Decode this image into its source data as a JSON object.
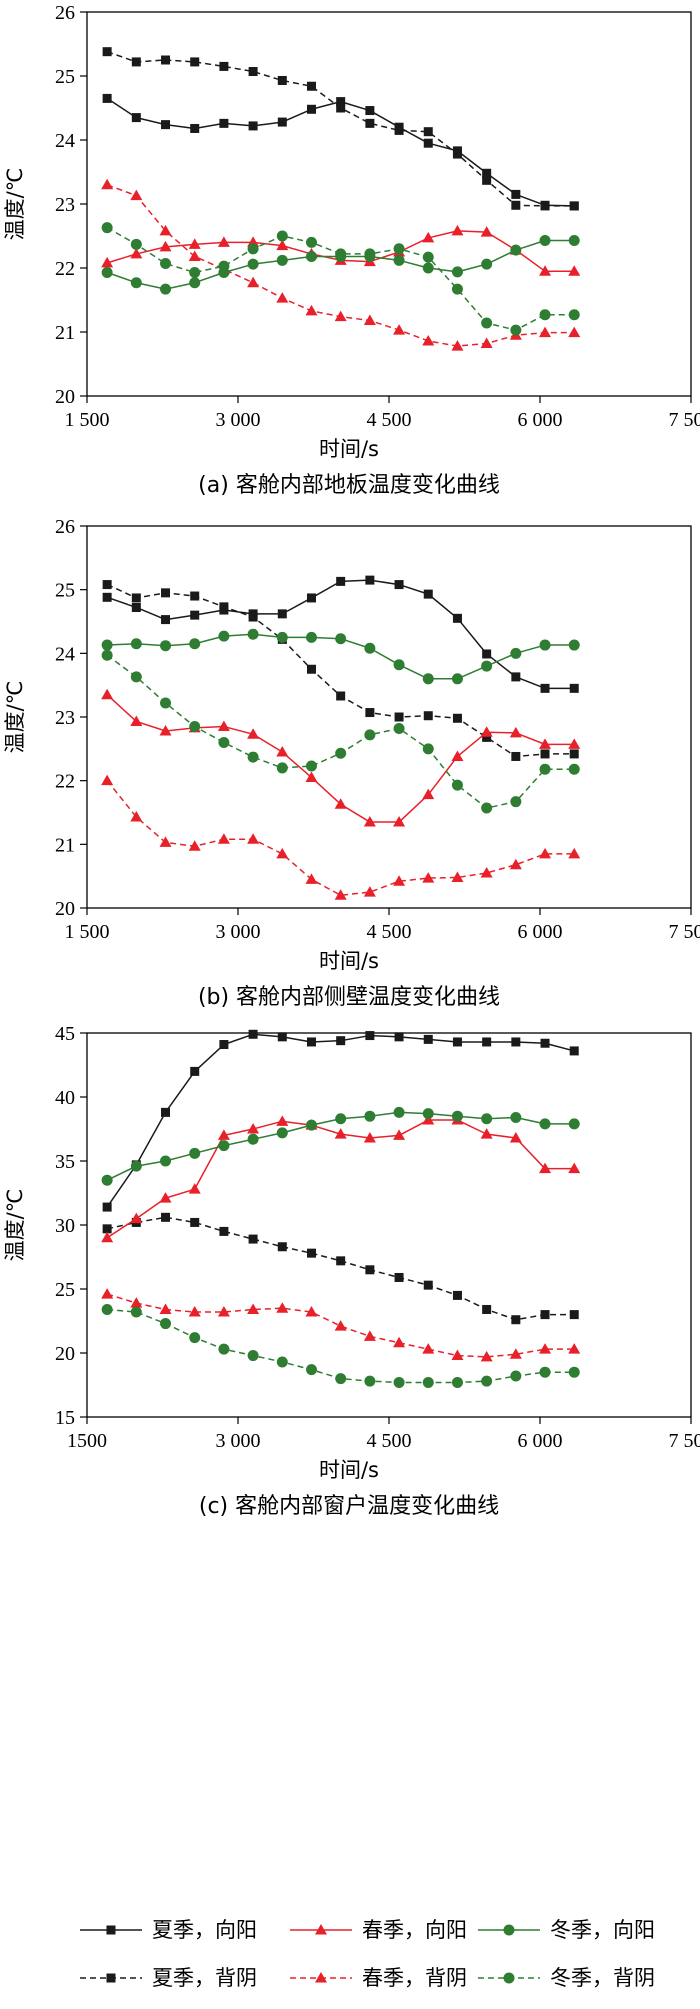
{
  "chart_data": [
    {
      "type": "line",
      "caption": "(a) 客舱内部地板温度变化曲线",
      "xlabel": "时间/s",
      "ylabel": "温度/℃",
      "xlim": [
        1500,
        7500
      ],
      "ylim": [
        20,
        26
      ],
      "xticks": [
        1500,
        3000,
        4500,
        6000,
        7500
      ],
      "xtick_labels": [
        "1 500",
        "3 000",
        "4 500",
        "6 000",
        "7 500"
      ],
      "yticks": [
        20,
        21,
        22,
        23,
        24,
        25,
        26
      ],
      "ytick_labels": [
        "20",
        "21",
        "22",
        "23",
        "24",
        "25",
        "26"
      ],
      "x": [
        1700,
        1990,
        2280,
        2570,
        2860,
        3150,
        3440,
        3730,
        4020,
        4310,
        4600,
        4890,
        5180,
        5470,
        5760,
        6050,
        6340
      ],
      "series": [
        {
          "name": "夏季,向阳",
          "values": [
            24.65,
            24.35,
            24.24,
            24.18,
            24.26,
            24.22,
            24.28,
            24.48,
            24.6,
            24.46,
            24.2,
            23.95,
            23.83,
            23.48,
            23.15,
            22.98,
            22.97
          ]
        },
        {
          "name": "夏季,背阴",
          "values": [
            25.38,
            25.22,
            25.25,
            25.22,
            25.15,
            25.07,
            24.93,
            24.84,
            24.5,
            24.26,
            24.15,
            24.13,
            23.78,
            23.37,
            22.98,
            22.97,
            22.97
          ]
        },
        {
          "name": "春季,向阳",
          "values": [
            22.08,
            22.22,
            22.33,
            22.37,
            22.4,
            22.4,
            22.35,
            22.22,
            22.12,
            22.1,
            22.25,
            22.47,
            22.58,
            22.56,
            22.28,
            21.95,
            21.95
          ]
        },
        {
          "name": "春季,背阴",
          "values": [
            23.3,
            23.13,
            22.58,
            22.18,
            21.98,
            21.77,
            21.53,
            21.33,
            21.24,
            21.18,
            21.03,
            20.86,
            20.78,
            20.82,
            20.95,
            20.99,
            20.99
          ]
        },
        {
          "name": "冬季,向阳",
          "values": [
            21.93,
            21.77,
            21.67,
            21.77,
            21.93,
            22.06,
            22.12,
            22.18,
            22.18,
            22.18,
            22.12,
            22.0,
            21.94,
            22.06,
            22.28,
            22.43,
            22.43
          ]
        },
        {
          "name": "冬季,背阴",
          "values": [
            22.63,
            22.37,
            22.07,
            21.93,
            22.03,
            22.3,
            22.5,
            22.4,
            22.22,
            22.22,
            22.3,
            22.17,
            21.67,
            21.14,
            21.03,
            21.27,
            21.27
          ]
        }
      ]
    },
    {
      "type": "line",
      "caption": "(b) 客舱内部侧壁温度变化曲线",
      "xlabel": "时间/s",
      "ylabel": "温度/℃",
      "xlim": [
        1500,
        7500
      ],
      "ylim": [
        20,
        26
      ],
      "xticks": [
        1500,
        3000,
        4500,
        6000,
        7500
      ],
      "xtick_labels": [
        "1 500",
        "3 000",
        "4 500",
        "6 000",
        "7 500"
      ],
      "yticks": [
        20,
        21,
        22,
        23,
        24,
        25,
        26
      ],
      "ytick_labels": [
        "20",
        "21",
        "22",
        "23",
        "24",
        "25",
        "26"
      ],
      "x": [
        1700,
        1990,
        2280,
        2570,
        2860,
        3150,
        3440,
        3730,
        4020,
        4310,
        4600,
        4890,
        5180,
        5470,
        5760,
        6050,
        6340
      ],
      "series": [
        {
          "name": "夏季,向阳",
          "values": [
            24.88,
            24.72,
            24.53,
            24.6,
            24.68,
            24.62,
            24.62,
            24.87,
            25.13,
            25.15,
            25.08,
            24.93,
            24.55,
            23.99,
            23.63,
            23.45,
            23.45
          ]
        },
        {
          "name": "夏季,背阴",
          "values": [
            25.08,
            24.87,
            24.95,
            24.9,
            24.73,
            24.57,
            24.22,
            23.75,
            23.33,
            23.07,
            23.0,
            23.02,
            22.98,
            22.68,
            22.38,
            22.42,
            22.42
          ]
        },
        {
          "name": "春季,向阳",
          "values": [
            23.35,
            22.93,
            22.78,
            22.83,
            22.85,
            22.73,
            22.45,
            22.05,
            21.63,
            21.35,
            21.35,
            21.78,
            22.38,
            22.76,
            22.75,
            22.57,
            22.57
          ]
        },
        {
          "name": "春季,背阴",
          "values": [
            22.0,
            21.43,
            21.03,
            20.97,
            21.08,
            21.08,
            20.85,
            20.45,
            20.2,
            20.25,
            20.42,
            20.47,
            20.48,
            20.55,
            20.68,
            20.85,
            20.85
          ]
        },
        {
          "name": "冬季,向阳",
          "values": [
            24.13,
            24.15,
            24.12,
            24.15,
            24.27,
            24.3,
            24.25,
            24.25,
            24.23,
            24.08,
            23.82,
            23.6,
            23.6,
            23.8,
            24.0,
            24.13,
            24.13
          ]
        },
        {
          "name": "冬季,背阴",
          "values": [
            23.97,
            23.63,
            23.22,
            22.85,
            22.6,
            22.37,
            22.2,
            22.23,
            22.43,
            22.72,
            22.82,
            22.5,
            21.93,
            21.57,
            21.67,
            22.18,
            22.18
          ]
        }
      ]
    },
    {
      "type": "line",
      "caption": "(c) 客舱内部窗户温度变化曲线",
      "xlabel": "时间/s",
      "ylabel": "温度/℃",
      "xlim": [
        1500,
        7500
      ],
      "ylim": [
        15,
        45
      ],
      "xticks": [
        1500,
        3000,
        4500,
        6000,
        7500
      ],
      "xtick_labels": [
        "1500",
        "3 000",
        "4 500",
        "6 000",
        "7 500"
      ],
      "yticks": [
        15,
        20,
        25,
        30,
        35,
        40,
        45
      ],
      "ytick_labels": [
        "15",
        "20",
        "25",
        "30",
        "35",
        "40",
        "45"
      ],
      "x": [
        1700,
        1990,
        2280,
        2570,
        2860,
        3150,
        3440,
        3730,
        4020,
        4310,
        4600,
        4890,
        5180,
        5470,
        5760,
        6050,
        6340
      ],
      "series": [
        {
          "name": "夏季,向阳",
          "values": [
            31.4,
            34.7,
            38.8,
            42.0,
            44.1,
            44.9,
            44.7,
            44.3,
            44.4,
            44.8,
            44.7,
            44.5,
            44.3,
            44.3,
            44.3,
            44.2,
            43.6
          ]
        },
        {
          "name": "夏季,背阴",
          "values": [
            29.7,
            30.2,
            30.6,
            30.2,
            29.5,
            28.9,
            28.3,
            27.8,
            27.2,
            26.5,
            25.9,
            25.3,
            24.5,
            23.4,
            22.6,
            23.0,
            23.0
          ]
        },
        {
          "name": "春季,向阳",
          "values": [
            29.0,
            30.5,
            32.1,
            32.8,
            37.0,
            37.5,
            38.1,
            37.8,
            37.1,
            36.8,
            37.0,
            38.2,
            38.2,
            37.1,
            36.8,
            34.4,
            34.4
          ]
        },
        {
          "name": "春季,背阴",
          "values": [
            24.6,
            23.9,
            23.4,
            23.2,
            23.2,
            23.4,
            23.5,
            23.2,
            22.1,
            21.3,
            20.8,
            20.3,
            19.8,
            19.7,
            19.9,
            20.3,
            20.3
          ]
        },
        {
          "name": "冬季,向阳",
          "values": [
            33.5,
            34.6,
            35.0,
            35.6,
            36.2,
            36.7,
            37.2,
            37.8,
            38.3,
            38.5,
            38.8,
            38.7,
            38.5,
            38.3,
            38.4,
            37.9,
            37.9
          ]
        },
        {
          "name": "冬季,背阴",
          "values": [
            23.4,
            23.2,
            22.3,
            21.2,
            20.3,
            19.8,
            19.3,
            18.7,
            18.0,
            17.8,
            17.7,
            17.7,
            17.7,
            17.8,
            18.2,
            18.5,
            18.5
          ]
        }
      ]
    }
  ],
  "legend": [
    {
      "label": "夏季，向阳",
      "color": "#1a1a1a",
      "dash": false,
      "marker": "square"
    },
    {
      "label": "春季，向阳",
      "color": "#e8202a",
      "dash": false,
      "marker": "triangle"
    },
    {
      "label": "冬季，向阳",
      "color": "#2e7d32",
      "dash": false,
      "marker": "circle"
    },
    {
      "label": "夏季，背阴",
      "color": "#1a1a1a",
      "dash": true,
      "marker": "square"
    },
    {
      "label": "春季，背阴",
      "color": "#e8202a",
      "dash": true,
      "marker": "triangle"
    },
    {
      "label": "冬季，背阴",
      "color": "#2e7d32",
      "dash": true,
      "marker": "circle"
    }
  ]
}
